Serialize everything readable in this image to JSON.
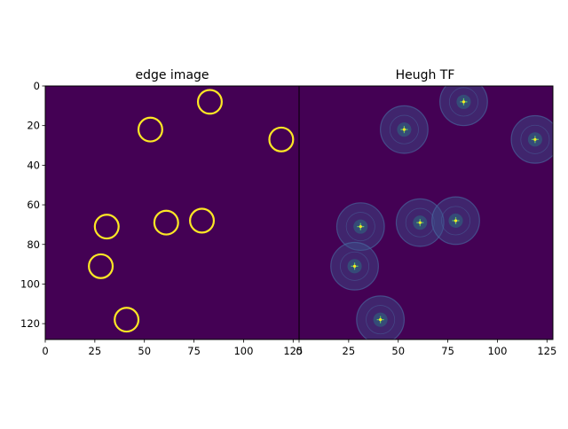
{
  "chart_data": [
    {
      "type": "heatmap",
      "title": "edge image",
      "xlim": [
        0,
        128
      ],
      "ylim": [
        128,
        0
      ],
      "xticks": [
        0,
        25,
        50,
        75,
        100,
        125
      ],
      "yticks": [
        0,
        20,
        40,
        60,
        80,
        100,
        120
      ],
      "xtick_labels": [
        "0",
        "25",
        "50",
        "75",
        "100",
        "125"
      ],
      "ytick_labels": [
        "0",
        "20",
        "40",
        "60",
        "80",
        "100",
        "120"
      ],
      "background_color": "#440154",
      "mark_color": "#fde725",
      "circles": [
        {
          "x": 83,
          "y": 8,
          "r": 6
        },
        {
          "x": 53,
          "y": 22,
          "r": 6
        },
        {
          "x": 119,
          "y": 27,
          "r": 6
        },
        {
          "x": 61,
          "y": 69,
          "r": 6
        },
        {
          "x": 79,
          "y": 68,
          "r": 6
        },
        {
          "x": 31,
          "y": 71,
          "r": 6
        },
        {
          "x": 28,
          "y": 91,
          "r": 6
        },
        {
          "x": 41,
          "y": 118,
          "r": 6
        }
      ]
    },
    {
      "type": "heatmap",
      "title": "Heugh TF",
      "xlim": [
        0,
        128
      ],
      "ylim": [
        128,
        0
      ],
      "xticks": [
        0,
        25,
        50,
        75,
        100,
        125
      ],
      "yticks": [],
      "xtick_labels": [
        "0",
        "25",
        "50",
        "75",
        "100",
        "125"
      ],
      "background_color": "#440154",
      "disc_color": "#3b528b",
      "peak_color": "#5ec962",
      "peak_center_color": "#fde725",
      "peaks": [
        {
          "x": 83,
          "y": 8,
          "r": 12
        },
        {
          "x": 53,
          "y": 22,
          "r": 12
        },
        {
          "x": 119,
          "y": 27,
          "r": 12
        },
        {
          "x": 61,
          "y": 69,
          "r": 12
        },
        {
          "x": 79,
          "y": 68,
          "r": 12
        },
        {
          "x": 31,
          "y": 71,
          "r": 12
        },
        {
          "x": 28,
          "y": 91,
          "r": 12
        },
        {
          "x": 41,
          "y": 118,
          "r": 12
        }
      ]
    }
  ]
}
